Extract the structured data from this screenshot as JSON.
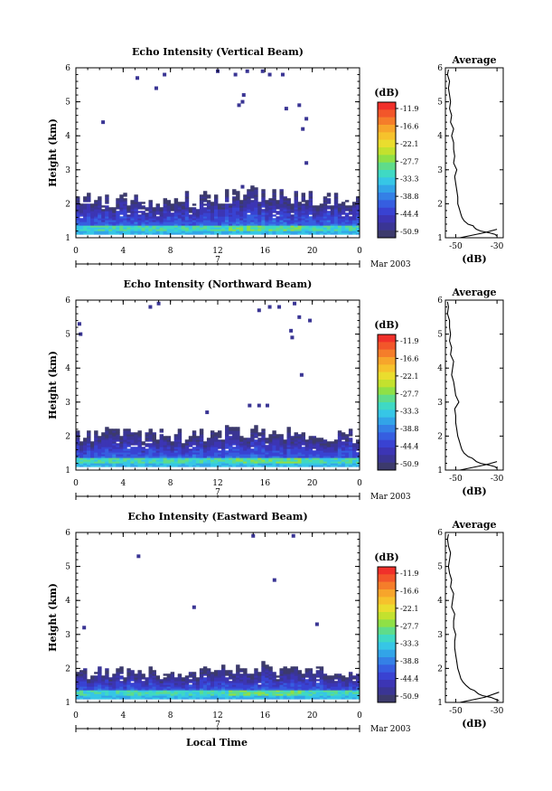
{
  "colorbar": {
    "unit": "(dB)",
    "labels": [
      "-11.9",
      "-16.6",
      "-22.1",
      "-27.7",
      "-33.3",
      "-38.8",
      "-44.4",
      "-50.9"
    ],
    "colors": [
      "#f0302a",
      "#f2562a",
      "#f57d2a",
      "#f7a52b",
      "#f6c22c",
      "#eadd2e",
      "#c3e12e",
      "#8fe046",
      "#5fdc8a",
      "#3fd9c4",
      "#36c6e6",
      "#32a4e8",
      "#3480e6",
      "#365ee0",
      "#3942d2",
      "#3c35b4",
      "#3a3594",
      "#3c3a6c"
    ]
  },
  "footer": {
    "xlabel": "Local Time"
  },
  "chart_data": [
    {
      "type": "heatmap",
      "title": "Echo Intensity (Vertical Beam)",
      "ylabel": "Height (km)",
      "xticks": [
        "0",
        "4",
        "8",
        "12",
        "16",
        "20",
        "0"
      ],
      "xlim": [
        0,
        24
      ],
      "ylim": [
        1,
        6
      ],
      "yticks": [
        "1",
        "2",
        "3",
        "4",
        "5",
        "6"
      ],
      "date_row": {
        "day": "7",
        "month_year": "Mar 2003"
      },
      "layer": {
        "base": 1.1,
        "top_mean": 2.1,
        "top_var": 0.25
      },
      "scatter": [
        [
          5.2,
          5.7
        ],
        [
          6.8,
          5.4
        ],
        [
          7.5,
          5.8
        ],
        [
          2.3,
          4.4
        ],
        [
          12.0,
          5.9
        ],
        [
          13.5,
          5.8
        ],
        [
          14.5,
          5.9
        ],
        [
          15.8,
          5.9
        ],
        [
          16.4,
          5.8
        ],
        [
          17.5,
          5.8
        ],
        [
          14.2,
          5.2
        ],
        [
          13.8,
          4.9
        ],
        [
          14.1,
          5.0
        ],
        [
          17.8,
          4.8
        ],
        [
          18.9,
          4.9
        ],
        [
          19.2,
          4.2
        ],
        [
          19.5,
          3.2
        ],
        [
          14.1,
          2.5
        ],
        [
          19.5,
          4.5
        ]
      ],
      "average": {
        "title": "Average",
        "xlabel": "(dB)",
        "xticks": [
          "-50",
          "-30"
        ],
        "xlim": [
          -55,
          -27
        ],
        "height": [
          1.05,
          1.1,
          1.15,
          1.2,
          1.25,
          1.3,
          1.35,
          1.4,
          1.5,
          1.6,
          1.7,
          1.8,
          1.9,
          2.0,
          2.2,
          2.4,
          2.6,
          2.8,
          3.0,
          3.2,
          3.4,
          3.6,
          3.8,
          4.0,
          4.2,
          4.4,
          4.6,
          4.8,
          5.0,
          5.2,
          5.4,
          5.6,
          5.8,
          5.95
        ],
        "db": [
          -30,
          -31,
          -34,
          -38,
          -40,
          -41,
          -41.5,
          -44,
          -46,
          -47,
          -47.5,
          -48,
          -48.5,
          -49,
          -49,
          -49.5,
          -50,
          -50.5,
          -49.5,
          -51,
          -50.5,
          -51,
          -51,
          -52,
          -51,
          -52.5,
          -52,
          -53,
          -52.5,
          -53,
          -53.5,
          -53,
          -54,
          -53.5
        ],
        "extra": {
          "height": [
            1.0,
            1.15,
            1.25
          ],
          "db": [
            -48,
            -36,
            -30
          ]
        }
      }
    },
    {
      "type": "heatmap",
      "title": "Echo Intensity (Northward Beam)",
      "ylabel": "Height (km)",
      "xticks": [
        "0",
        "4",
        "8",
        "12",
        "16",
        "20",
        "0"
      ],
      "xlim": [
        0,
        24
      ],
      "ylim": [
        1,
        6
      ],
      "yticks": [
        "1",
        "2",
        "3",
        "4",
        "5",
        "6"
      ],
      "date_row": {
        "day": "7",
        "month_year": "Mar 2003"
      },
      "layer": {
        "base": 1.1,
        "top_mean": 2.0,
        "top_var": 0.22
      },
      "scatter": [
        [
          6.3,
          5.8
        ],
        [
          7.0,
          5.9
        ],
        [
          0.3,
          5.3
        ],
        [
          0.4,
          5.0
        ],
        [
          15.5,
          5.7
        ],
        [
          16.4,
          5.8
        ],
        [
          17.2,
          5.8
        ],
        [
          18.5,
          5.9
        ],
        [
          18.9,
          5.5
        ],
        [
          19.8,
          5.4
        ],
        [
          18.2,
          5.1
        ],
        [
          18.3,
          4.9
        ],
        [
          14.7,
          2.9
        ],
        [
          15.5,
          2.9
        ],
        [
          16.2,
          2.9
        ],
        [
          11.1,
          2.7
        ],
        [
          19.1,
          3.8
        ]
      ],
      "average": {
        "title": "Average",
        "xlabel": "(dB)",
        "xticks": [
          "-50",
          "-30"
        ],
        "xlim": [
          -55,
          -27
        ],
        "height": [
          1.05,
          1.1,
          1.15,
          1.2,
          1.25,
          1.3,
          1.35,
          1.4,
          1.5,
          1.6,
          1.7,
          1.8,
          1.9,
          2.0,
          2.2,
          2.4,
          2.6,
          2.8,
          3.0,
          3.2,
          3.4,
          3.6,
          3.8,
          4.0,
          4.2,
          4.4,
          4.6,
          4.8,
          5.0,
          5.2,
          5.4,
          5.6,
          5.8,
          5.95
        ],
        "db": [
          -30,
          -31,
          -34,
          -38,
          -40,
          -41,
          -42,
          -44,
          -46,
          -47,
          -47.5,
          -48,
          -48.5,
          -49,
          -49.5,
          -50,
          -50,
          -50.5,
          -48.5,
          -50,
          -50.5,
          -51,
          -52,
          -51.5,
          -51,
          -52.5,
          -52,
          -53,
          -52.5,
          -53,
          -53,
          -54,
          -53.5,
          -54
        ],
        "extra": {
          "height": [
            1.0,
            1.15,
            1.25
          ],
          "db": [
            -48,
            -36,
            -30
          ]
        }
      }
    },
    {
      "type": "heatmap",
      "title": "Echo Intensity (Eastward Beam)",
      "ylabel": "Height (km)",
      "xticks": [
        "0",
        "4",
        "8",
        "12",
        "16",
        "20",
        "0"
      ],
      "xlim": [
        0,
        24
      ],
      "ylim": [
        1,
        6
      ],
      "yticks": [
        "1",
        "2",
        "3",
        "4",
        "5",
        "6"
      ],
      "date_row": {
        "day": "7",
        "month_year": "Mar 2003"
      },
      "layer": {
        "base": 1.1,
        "top_mean": 1.85,
        "top_var": 0.2
      },
      "scatter": [
        [
          5.3,
          5.3
        ],
        [
          15.0,
          5.9
        ],
        [
          18.4,
          5.9
        ],
        [
          16.8,
          4.6
        ],
        [
          10.0,
          3.8
        ],
        [
          0.7,
          3.2
        ],
        [
          20.4,
          3.3
        ]
      ],
      "average": {
        "title": "Average",
        "xlabel": "(dB)",
        "xticks": [
          "-50",
          "-30"
        ],
        "xlim": [
          -55,
          -27
        ],
        "height": [
          1.05,
          1.1,
          1.15,
          1.2,
          1.25,
          1.3,
          1.35,
          1.4,
          1.5,
          1.6,
          1.7,
          1.8,
          1.9,
          2.0,
          2.2,
          2.4,
          2.6,
          2.8,
          3.0,
          3.2,
          3.4,
          3.6,
          3.8,
          4.0,
          4.2,
          4.4,
          4.6,
          4.8,
          5.0,
          5.2,
          5.4,
          5.6,
          5.8,
          5.95
        ],
        "db": [
          -29,
          -31,
          -33,
          -37,
          -39,
          -40,
          -41,
          -43,
          -45,
          -46.5,
          -47.5,
          -48,
          -48.5,
          -49,
          -49.5,
          -50,
          -50.5,
          -50.5,
          -50,
          -51,
          -51,
          -50.5,
          -52,
          -51.5,
          -51,
          -52.5,
          -52,
          -53,
          -53.5,
          -53,
          -52.5,
          -53.5,
          -54,
          -53.5
        ],
        "extra": {
          "height": [
            1.0,
            1.15,
            1.3
          ],
          "db": [
            -48,
            -36,
            -29
          ]
        }
      }
    }
  ]
}
